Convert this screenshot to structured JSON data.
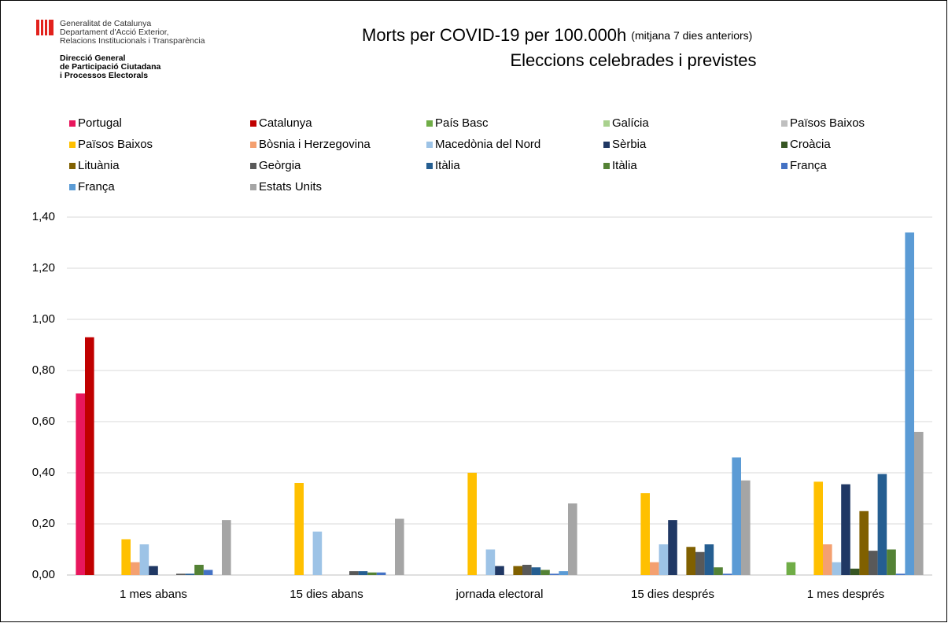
{
  "header": {
    "lines": [
      "Generalitat de Catalunya",
      "Departament d'Acció Exterior,",
      "Relacions Institucionals i Transparència"
    ],
    "bold_lines": [
      "Direcció General",
      "de Participació Ciutadana",
      "i Processos Electorals"
    ]
  },
  "chart_data": {
    "type": "bar",
    "title": "Morts per COVID-19 per 100.000h",
    "title_note": "(mitjana 7 dies anteriors)",
    "subtitle": "Eleccions celebrades i previstes",
    "categories": [
      "1 mes abans",
      "15 dies abans",
      "jornada electoral",
      "15 dies després",
      "1 mes després"
    ],
    "ylim": [
      0,
      1.4
    ],
    "yticks": [
      {
        "value": 0,
        "label": "0,00"
      },
      {
        "value": 0.2,
        "label": "0,20"
      },
      {
        "value": 0.4,
        "label": "0,40"
      },
      {
        "value": 0.6,
        "label": "0,60"
      },
      {
        "value": 0.8,
        "label": "0,80"
      },
      {
        "value": 1.0,
        "label": "1,00"
      },
      {
        "value": 1.2,
        "label": "1,20"
      },
      {
        "value": 1.4,
        "label": "1,40"
      }
    ],
    "grid": true,
    "series": [
      {
        "name": "Portugal",
        "color": "#e8175d",
        "values": [
          0.71,
          0,
          0,
          0,
          0
        ]
      },
      {
        "name": "Catalunya",
        "color": "#c00000",
        "values": [
          0.93,
          0,
          0,
          0,
          0
        ]
      },
      {
        "name": "País Basc",
        "color": "#70ad47",
        "values": [
          0,
          0,
          0,
          0,
          0.05
        ]
      },
      {
        "name": "Galícia",
        "color": "#a9d18e",
        "values": [
          0,
          0,
          0,
          0,
          0
        ]
      },
      {
        "name": "Països Baixos",
        "color": "#bfbfbf",
        "values": [
          0,
          0,
          0,
          0,
          0
        ]
      },
      {
        "name": "Països Baixos",
        "color": "#ffc000",
        "values": [
          0.14,
          0.36,
          0.4,
          0.32,
          0.365
        ]
      },
      {
        "name": "Bòsnia i Herzegovina",
        "color": "#f4a070",
        "values": [
          0.05,
          0,
          0,
          0.05,
          0.12
        ]
      },
      {
        "name": "Macedònia del Nord",
        "color": "#9dc3e6",
        "values": [
          0.12,
          0.17,
          0.1,
          0.12,
          0.05
        ]
      },
      {
        "name": "Sèrbia",
        "color": "#203864",
        "values": [
          0.035,
          0,
          0.035,
          0.215,
          0.355
        ]
      },
      {
        "name": "Croàcia",
        "color": "#375623",
        "values": [
          0,
          0,
          0,
          0,
          0.025
        ]
      },
      {
        "name": "Lituània",
        "color": "#806000",
        "values": [
          0,
          0,
          0.035,
          0.11,
          0.25
        ]
      },
      {
        "name": "Geòrgia",
        "color": "#595959",
        "values": [
          0.005,
          0.015,
          0.04,
          0.09,
          0.095
        ]
      },
      {
        "name": "Itàlia",
        "color": "#255e91",
        "values": [
          0.005,
          0.015,
          0.03,
          0.12,
          0.395
        ]
      },
      {
        "name": "Itàlia",
        "color": "#548235",
        "values": [
          0.04,
          0.01,
          0.02,
          0.03,
          0.1
        ]
      },
      {
        "name": "França",
        "color": "#4472c4",
        "values": [
          0.02,
          0.01,
          0.005,
          0.005,
          0.005
        ]
      },
      {
        "name": "França",
        "color": "#5b9bd5",
        "values": [
          0,
          0,
          0.015,
          0.46,
          1.34
        ]
      },
      {
        "name": "Estats Units",
        "color": "#a5a5a5",
        "values": [
          0.215,
          0.22,
          0.28,
          0.37,
          0.56
        ]
      }
    ]
  }
}
